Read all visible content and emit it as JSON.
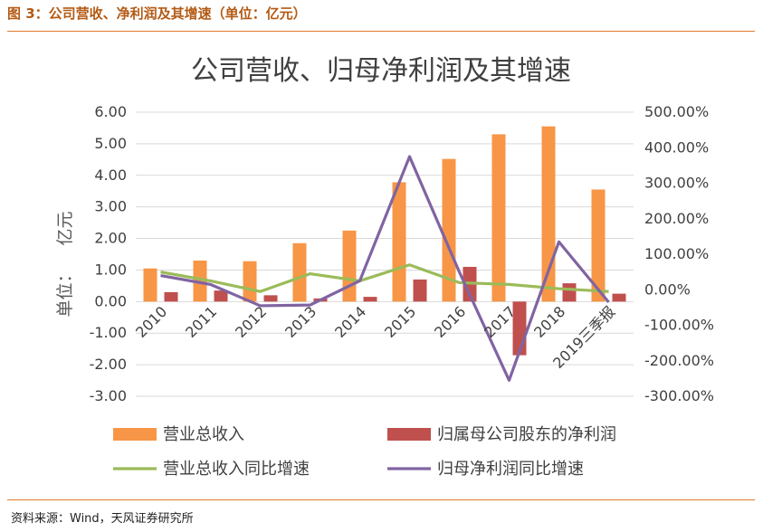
{
  "page": {
    "caption": "图 3：公司营收、净利润及其增速（单位：亿元）",
    "source": "资料来源：Wind，天风证券研究所"
  },
  "chart_data": {
    "type": "bar",
    "title": "公司营收、归母净利润及其增速",
    "ylabel": "单位：亿元",
    "ylabel_parts": [
      "单位：",
      "亿元"
    ],
    "xlabel": "",
    "categories": [
      "2010",
      "2011",
      "2012",
      "2013",
      "2014",
      "2015",
      "2016",
      "2017",
      "2018",
      "2019三季报"
    ],
    "ylim": [
      -3,
      6
    ],
    "y2lim": [
      -300,
      500
    ],
    "y_ticks": [
      "6.00",
      "5.00",
      "4.00",
      "3.00",
      "2.00",
      "1.00",
      "0.00",
      "-1.00",
      "-2.00",
      "-3.00"
    ],
    "y2_ticks": [
      "500.00%",
      "400.00%",
      "300.00%",
      "200.00%",
      "100.00%",
      "0.00%",
      "-100.00%",
      "-200.00%",
      "-300.00%"
    ],
    "grid": true,
    "legend_position": "bottom",
    "series": [
      {
        "name": "营业总收入",
        "type": "bar",
        "axis": "left",
        "color": "#f79646",
        "values": [
          1.05,
          1.3,
          1.28,
          1.85,
          2.25,
          3.78,
          4.52,
          5.3,
          5.55,
          3.55
        ]
      },
      {
        "name": "归属母公司股东的净利润",
        "type": "bar",
        "axis": "left",
        "color": "#c0504d",
        "values": [
          0.3,
          0.35,
          0.2,
          0.1,
          0.15,
          0.7,
          1.1,
          -1.7,
          0.58,
          0.25
        ]
      },
      {
        "name": "营业总收入同比增速",
        "type": "line",
        "axis": "right",
        "color": "#9bbb59",
        "values": [
          50,
          25,
          -5,
          45,
          25,
          70,
          20,
          15,
          3,
          -5
        ]
      },
      {
        "name": "归母净利润同比增速",
        "type": "line",
        "axis": "right",
        "color": "#8064a2",
        "values": [
          40,
          15,
          -45,
          -43,
          25,
          375,
          50,
          -255,
          135,
          -35
        ]
      }
    ]
  }
}
